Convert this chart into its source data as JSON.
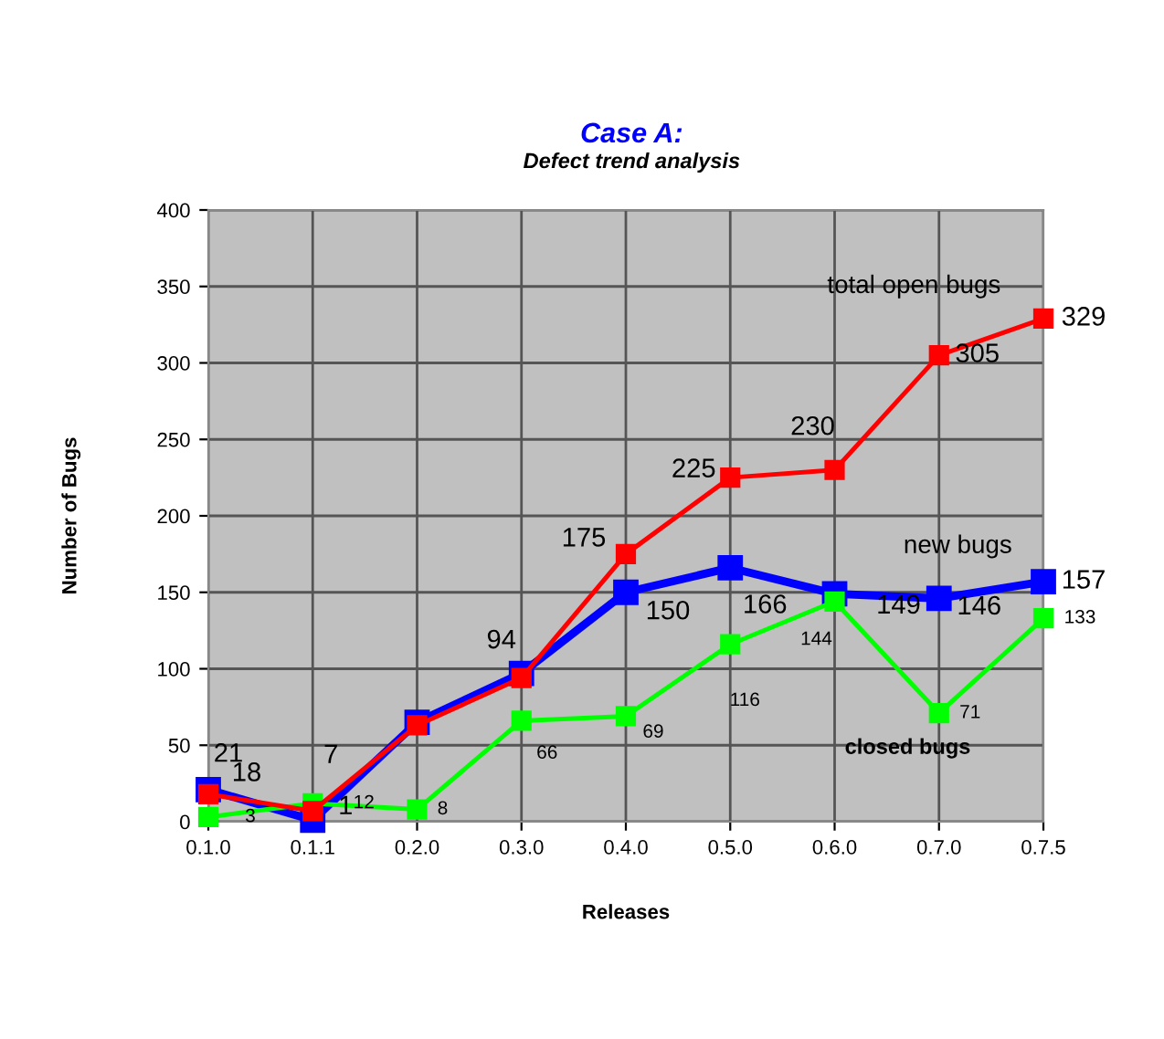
{
  "chart_data": {
    "type": "line",
    "title": "Case A:",
    "subtitle": "Defect trend analysis",
    "xlabel": "Releases",
    "ylabel": "Number of Bugs",
    "categories": [
      "0.1.0",
      "0.1.1",
      "0.2.0",
      "0.3.0",
      "0.4.0",
      "0.5.0",
      "0.6.0",
      "0.7.0",
      "0.7.5"
    ],
    "series": [
      {
        "name": "new bugs",
        "color": "#0000ff",
        "values": [
          21,
          1,
          65,
          97,
          150,
          166,
          149,
          146,
          157
        ],
        "value_labels": [
          "21",
          "1",
          null,
          null,
          "150",
          "166",
          "149",
          "146",
          "157"
        ]
      },
      {
        "name": "closed bugs",
        "color": "#00ff00",
        "values": [
          3,
          12,
          8,
          66,
          69,
          116,
          144,
          71,
          133
        ],
        "value_labels": [
          "3",
          "12",
          "8",
          "66",
          "69",
          "116",
          "144",
          "71",
          "133"
        ]
      },
      {
        "name": "total open bugs",
        "color": "#ff0000",
        "values": [
          18,
          7,
          63,
          94,
          175,
          225,
          230,
          305,
          329
        ],
        "value_labels": [
          "18",
          "7",
          null,
          "94",
          "175",
          "225",
          "230",
          "305",
          "329"
        ]
      }
    ],
    "ylim": [
      0,
      400
    ],
    "yticks": [
      0,
      50,
      100,
      150,
      200,
      250,
      300,
      350,
      400
    ],
    "grid": true,
    "legend": false,
    "marker": "square",
    "line_style": "solid"
  }
}
